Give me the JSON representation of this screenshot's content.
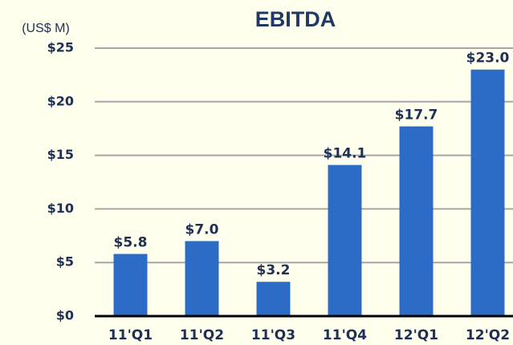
{
  "chart_data": {
    "type": "bar",
    "title": "EBITDA",
    "y_axis_label": "(US$ M)",
    "categories": [
      "11'Q1",
      "11'Q2",
      "11'Q3",
      "11'Q4",
      "12'Q1",
      "12'Q2"
    ],
    "values": [
      5.8,
      7.0,
      3.2,
      14.1,
      17.7,
      23.0
    ],
    "value_labels": [
      "$5.8",
      "$7.0",
      "$3.2",
      "$14.1",
      "$17.7",
      "$23.0"
    ],
    "color": "#2c6cc6",
    "ylim": [
      0,
      25
    ],
    "yticks": [
      {
        "value": 0,
        "label": "$0"
      },
      {
        "value": 5,
        "label": "$5"
      },
      {
        "value": 10,
        "label": "$10"
      },
      {
        "value": 15,
        "label": "$15"
      },
      {
        "value": 20,
        "label": "$20"
      },
      {
        "value": 25,
        "label": "$25"
      }
    ],
    "grid": true
  }
}
